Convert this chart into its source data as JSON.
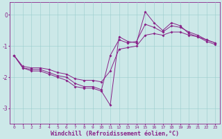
{
  "xlabel": "Windchill (Refroidissement éolien,°C)",
  "background_color": "#cce8e8",
  "line_color": "#882288",
  "grid_color": "#99cccc",
  "series1": [
    -1.3,
    -1.7,
    -1.8,
    -1.8,
    -1.9,
    -2.0,
    -2.1,
    -2.3,
    -2.35,
    -2.35,
    -2.45,
    -2.9,
    -0.7,
    -0.85,
    -0.9,
    0.1,
    -0.25,
    -0.5,
    -0.25,
    -0.35,
    -0.6,
    -0.7,
    -0.85,
    -0.95
  ],
  "series2": [
    -1.3,
    -1.7,
    -1.75,
    -1.75,
    -1.85,
    -1.95,
    -2.0,
    -2.2,
    -2.3,
    -2.3,
    -2.4,
    -1.3,
    -0.8,
    -0.9,
    -0.85,
    -0.3,
    -0.4,
    -0.55,
    -0.35,
    -0.4,
    -0.55,
    -0.65,
    -0.8,
    -0.9
  ],
  "series3": [
    -1.3,
    -1.65,
    -1.7,
    -1.7,
    -1.75,
    -1.85,
    -1.9,
    -2.05,
    -2.1,
    -2.1,
    -2.15,
    -1.8,
    -1.1,
    -1.05,
    -1.0,
    -0.65,
    -0.6,
    -0.65,
    -0.55,
    -0.55,
    -0.65,
    -0.7,
    -0.8,
    -0.9
  ],
  "hours": [
    0,
    1,
    2,
    3,
    4,
    5,
    6,
    7,
    8,
    9,
    10,
    11,
    12,
    13,
    14,
    15,
    16,
    17,
    18,
    19,
    20,
    21,
    22,
    23
  ],
  "ylim": [
    -3.5,
    0.4
  ],
  "xlim": [
    -0.5,
    23.5
  ],
  "yticks": [
    0,
    -1,
    -2,
    -3
  ],
  "xticks": [
    0,
    1,
    2,
    3,
    4,
    5,
    6,
    7,
    8,
    9,
    10,
    11,
    12,
    13,
    14,
    15,
    16,
    17,
    18,
    19,
    20,
    21,
    22,
    23
  ],
  "tick_fontsize": 4.5,
  "xlabel_fontsize": 6.0,
  "figwidth": 3.2,
  "figheight": 2.0,
  "dpi": 100
}
